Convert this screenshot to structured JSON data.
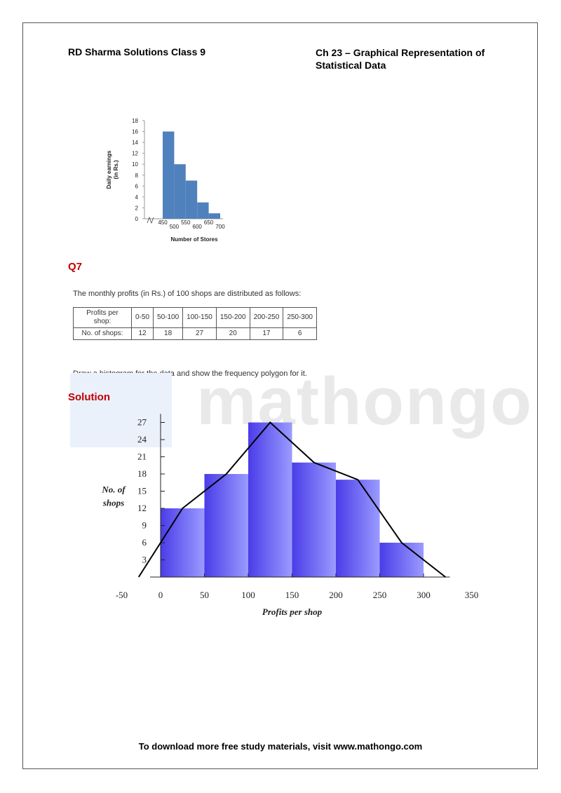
{
  "header": {
    "left": "RD Sharma Solutions Class 9",
    "right_line1": "Ch 23 – Graphical Representation of",
    "right_line2": "Statistical Data"
  },
  "question": {
    "label": "Q7",
    "text": "The monthly profits (in Rs.) of 100 shops are distributed as follows:",
    "table": {
      "row1_header": "Profits per shop:",
      "row2_header": "No. of shops:",
      "intervals": [
        "0-50",
        "50-100",
        "100-150",
        "150-200",
        "200-250",
        "250-300"
      ],
      "counts": [
        "12",
        "18",
        "27",
        "20",
        "17",
        "6"
      ]
    },
    "instruction": "Draw a histogram for the data and show the frequency polygon for it."
  },
  "solution_label": "Solution",
  "watermark": "mathongo",
  "footer": "To download more free study materials, visit www.mathongo.com",
  "chart_data": [
    {
      "type": "bar",
      "title": "",
      "xlabel": "Number of Stores",
      "ylabel": "Daily earnings (in Rs.)",
      "x_tick_labels": [
        "450",
        "500",
        "550",
        "600",
        "650",
        "700"
      ],
      "y_ticks": [
        0,
        2,
        4,
        6,
        8,
        10,
        12,
        14,
        16,
        18
      ],
      "ylim": [
        0,
        18
      ],
      "bins": [
        [
          450,
          500
        ],
        [
          500,
          550
        ],
        [
          550,
          600
        ],
        [
          600,
          650
        ],
        [
          650,
          700
        ]
      ],
      "values": [
        16,
        10,
        7,
        3,
        1
      ],
      "bar_color": "#4f81bd"
    },
    {
      "type": "bar",
      "title": "",
      "xlabel": "Profits per shop",
      "ylabel": "No. of shops",
      "x_tick_labels": [
        "-50",
        "0",
        "50",
        "100",
        "150",
        "200",
        "250",
        "300",
        "350"
      ],
      "y_ticks": [
        3,
        6,
        9,
        12,
        15,
        18,
        21,
        24,
        27
      ],
      "ylim": [
        0,
        27
      ],
      "bins": [
        [
          0,
          50
        ],
        [
          50,
          100
        ],
        [
          100,
          150
        ],
        [
          150,
          200
        ],
        [
          200,
          250
        ],
        [
          250,
          300
        ]
      ],
      "values": [
        12,
        18,
        27,
        20,
        17,
        6
      ],
      "polygon_x": [
        -25,
        25,
        75,
        125,
        175,
        225,
        275,
        325
      ],
      "polygon_y": [
        0,
        12,
        18,
        27,
        20,
        17,
        6,
        0
      ],
      "bar_color": "#6a5cf0"
    }
  ]
}
